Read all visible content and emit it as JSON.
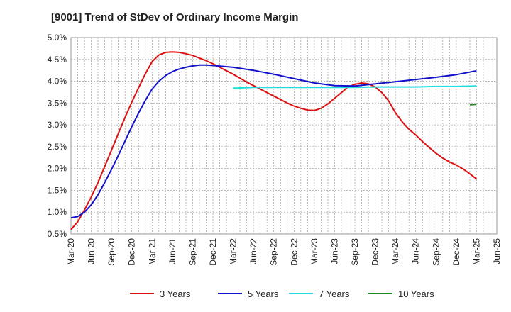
{
  "chart_data": {
    "type": "line",
    "title": "[9001]  Trend of StDev of Ordinary Income Margin",
    "xlabel": "",
    "ylabel": "",
    "x_ticks": [
      "Mar-20",
      "Jun-20",
      "Sep-20",
      "Dec-20",
      "Mar-21",
      "Jun-21",
      "Sep-21",
      "Dec-21",
      "Mar-22",
      "Jun-22",
      "Sep-22",
      "Dec-22",
      "Mar-23",
      "Jun-23",
      "Sep-23",
      "Dec-23",
      "Mar-24",
      "Jun-24",
      "Sep-24",
      "Dec-24",
      "Mar-25",
      "Jun-25"
    ],
    "y_ticks": [
      "0.5%",
      "1.0%",
      "1.5%",
      "2.0%",
      "2.5%",
      "3.0%",
      "3.5%",
      "4.0%",
      "4.5%",
      "5.0%"
    ],
    "ylim": [
      0.5,
      5.0
    ],
    "grid": true,
    "legend_position": "bottom",
    "series": [
      {
        "name": "3 Years",
        "color": "#dd1111",
        "x": [
          "Mar-20",
          "Apr-20",
          "May-20",
          "Jun-20",
          "Jul-20",
          "Aug-20",
          "Sep-20",
          "Oct-20",
          "Nov-20",
          "Dec-20",
          "Jan-21",
          "Feb-21",
          "Mar-21",
          "Apr-21",
          "May-21",
          "Jun-21",
          "Jul-21",
          "Aug-21",
          "Sep-21",
          "Oct-21",
          "Nov-21",
          "Dec-21",
          "Jan-22",
          "Feb-22",
          "Mar-22",
          "Apr-22",
          "May-22",
          "Jun-22",
          "Jul-22",
          "Aug-22",
          "Sep-22",
          "Oct-22",
          "Nov-22",
          "Dec-22",
          "Jan-23",
          "Feb-23",
          "Mar-23",
          "Apr-23",
          "May-23",
          "Jun-23",
          "Jul-23",
          "Aug-23",
          "Sep-23",
          "Oct-23",
          "Nov-23",
          "Dec-23",
          "Jan-24",
          "Feb-24",
          "Mar-24",
          "Apr-24",
          "May-24",
          "Jun-24",
          "Jul-24",
          "Aug-24",
          "Sep-24",
          "Oct-24",
          "Nov-24",
          "Dec-24",
          "Jan-25",
          "Feb-25",
          "Mar-25"
        ],
        "values": [
          0.6,
          0.78,
          1.05,
          1.35,
          1.68,
          2.05,
          2.42,
          2.8,
          3.17,
          3.52,
          3.85,
          4.17,
          4.45,
          4.6,
          4.66,
          4.67,
          4.66,
          4.63,
          4.59,
          4.53,
          4.47,
          4.4,
          4.32,
          4.24,
          4.16,
          4.07,
          3.98,
          3.9,
          3.82,
          3.74,
          3.66,
          3.58,
          3.5,
          3.43,
          3.38,
          3.34,
          3.33,
          3.38,
          3.48,
          3.61,
          3.74,
          3.87,
          3.93,
          3.96,
          3.94,
          3.87,
          3.74,
          3.55,
          3.28,
          3.07,
          2.9,
          2.77,
          2.62,
          2.48,
          2.35,
          2.24,
          2.15,
          2.08,
          1.99,
          1.88,
          1.76
        ]
      },
      {
        "name": "5 Years",
        "color": "#1111cc",
        "x": [
          "Mar-20",
          "Apr-20",
          "May-20",
          "Jun-20",
          "Jul-20",
          "Aug-20",
          "Sep-20",
          "Oct-20",
          "Nov-20",
          "Dec-20",
          "Jan-21",
          "Feb-21",
          "Mar-21",
          "Apr-21",
          "May-21",
          "Jun-21",
          "Jul-21",
          "Aug-21",
          "Sep-21",
          "Oct-21",
          "Nov-21",
          "Dec-21",
          "Mar-22",
          "Jun-22",
          "Sep-22",
          "Dec-22",
          "Mar-23",
          "Jun-23",
          "Sep-23",
          "Dec-23",
          "Mar-24",
          "Jun-24",
          "Sep-24",
          "Dec-24",
          "Mar-25"
        ],
        "values": [
          0.87,
          0.9,
          1.0,
          1.17,
          1.4,
          1.68,
          1.98,
          2.3,
          2.63,
          2.96,
          3.27,
          3.56,
          3.82,
          4.0,
          4.13,
          4.22,
          4.28,
          4.32,
          4.35,
          4.37,
          4.37,
          4.36,
          4.32,
          4.25,
          4.16,
          4.06,
          3.96,
          3.9,
          3.89,
          3.94,
          3.99,
          4.04,
          4.09,
          4.15,
          4.24
        ]
      },
      {
        "name": "7 Years",
        "color": "#22dddd",
        "x": [
          "Mar-22",
          "Jun-22",
          "Sep-22",
          "Dec-22",
          "Mar-23",
          "Jun-23",
          "Sep-23",
          "Dec-23",
          "Mar-24",
          "Jun-24",
          "Sep-24",
          "Dec-24",
          "Mar-25"
        ],
        "values": [
          3.84,
          3.86,
          3.86,
          3.86,
          3.86,
          3.86,
          3.86,
          3.87,
          3.87,
          3.87,
          3.88,
          3.88,
          3.89
        ]
      },
      {
        "name": "10 Years",
        "color": "#228822",
        "x": [
          "Feb-25",
          "Mar-25"
        ],
        "values": [
          3.46,
          3.47
        ]
      }
    ]
  }
}
